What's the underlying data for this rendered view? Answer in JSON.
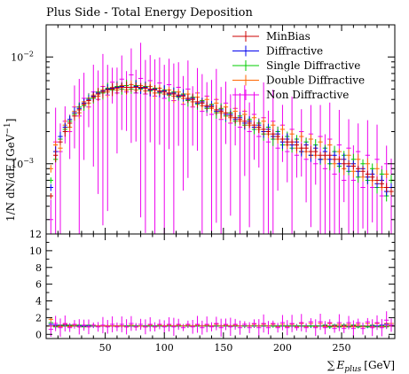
{
  "chart_data": {
    "type": "scatter",
    "title": "Plus Side - Total Energy Deposition",
    "xlabel": "∑E_plus [GeV]",
    "ylabel": "1/N dN/dE [GeV⁻¹]",
    "ylabel_text": "1/N dN/dE [GeV",
    "ylabel_sup": "−1",
    "ylabel_end": "]",
    "xlabel_sum": "∑",
    "xlabel_E": "E",
    "xlabel_sub": "plus",
    "xlabel_unit": "[GeV]",
    "xlim": [
      0,
      295
    ],
    "ylim_top": [
      0.00022,
      0.02
    ],
    "ylim_bottom": [
      -0.5,
      12
    ],
    "x_ticks": [
      50,
      100,
      150,
      200,
      250
    ],
    "y_ticks_top": [
      {
        "base": "10",
        "exp": "−2",
        "value": 0.01
      },
      {
        "base": "10",
        "exp": "−3",
        "value": 0.001
      }
    ],
    "y_ticks_bottom": [
      0,
      2,
      4,
      6,
      8,
      10,
      12
    ],
    "legend_position": "top-right",
    "x": [
      4,
      8,
      12,
      16,
      20,
      24,
      28,
      32,
      36,
      40,
      44,
      48,
      52,
      56,
      60,
      64,
      68,
      72,
      76,
      80,
      84,
      88,
      92,
      96,
      100,
      104,
      108,
      112,
      116,
      120,
      124,
      128,
      132,
      136,
      140,
      144,
      148,
      152,
      156,
      160,
      164,
      168,
      172,
      176,
      180,
      184,
      188,
      192,
      196,
      200,
      204,
      208,
      212,
      216,
      220,
      224,
      228,
      232,
      236,
      240,
      244,
      248,
      252,
      256,
      260,
      264,
      268,
      272,
      276,
      280,
      284,
      288,
      292
    ],
    "series": [
      {
        "name": "MinBias",
        "color": "#cc0000",
        "values": [
          0.0005,
          0.0012,
          0.0016,
          0.002,
          0.0024,
          0.0028,
          0.0032,
          0.0036,
          0.0039,
          0.0042,
          0.0045,
          0.0047,
          0.0049,
          0.005,
          0.0051,
          0.0052,
          0.0052,
          0.0052,
          0.0052,
          0.0052,
          0.0051,
          0.005,
          0.0049,
          0.0048,
          0.0047,
          0.0046,
          0.0045,
          0.0044,
          0.0043,
          0.0041,
          0.004,
          0.0038,
          0.0037,
          0.0035,
          0.0034,
          0.0032,
          0.0031,
          0.003,
          0.0028,
          0.0027,
          0.0026,
          0.0025,
          0.0024,
          0.0023,
          0.0022,
          0.0021,
          0.002,
          0.0019,
          0.0018,
          0.0017,
          0.0016,
          0.0016,
          0.0015,
          0.0014,
          0.0014,
          0.0013,
          0.0013,
          0.0012,
          0.0012,
          0.0012,
          0.0011,
          0.0011,
          0.001,
          0.001,
          0.00095,
          0.0009,
          0.00085,
          0.0008,
          0.00075,
          0.0007,
          0.00065,
          0.0006,
          0.00055
        ]
      },
      {
        "name": "Diffractive",
        "color": "#0000ee",
        "values": [
          0.0006,
          0.0013,
          0.0018,
          0.0022,
          0.0026,
          0.003,
          0.0033,
          0.0037,
          0.004,
          0.0043,
          0.0046,
          0.0048,
          0.005,
          0.0051,
          0.0052,
          0.0053,
          0.0052,
          0.0052,
          0.0053,
          0.0051,
          0.0052,
          0.0049,
          0.005,
          0.0047,
          0.0048,
          0.0045,
          0.0046,
          0.0043,
          0.0044,
          0.004,
          0.0041,
          0.0037,
          0.0038,
          0.0034,
          0.0035,
          0.0031,
          0.0032,
          0.0029,
          0.0029,
          0.0026,
          0.0027,
          0.0024,
          0.0025,
          0.0022,
          0.0023,
          0.002,
          0.0021,
          0.0018,
          0.0019,
          0.0016,
          0.0017,
          0.0015,
          0.0016,
          0.0013,
          0.0015,
          0.0012,
          0.0014,
          0.0011,
          0.0013,
          0.0011,
          0.0012,
          0.001,
          0.0011,
          0.00095,
          0.001,
          0.00085,
          0.0009,
          0.00075,
          0.0008,
          0.00065,
          0.0007,
          0.00055,
          0.0006
        ]
      },
      {
        "name": "Single Diffractive",
        "color": "#00cc00",
        "values": [
          0.0007,
          0.0011,
          0.0017,
          0.0021,
          0.0025,
          0.0029,
          0.0034,
          0.0035,
          0.0041,
          0.0041,
          0.0047,
          0.0046,
          0.0051,
          0.0049,
          0.0053,
          0.005,
          0.0054,
          0.005,
          0.0054,
          0.005,
          0.0053,
          0.0048,
          0.0051,
          0.0046,
          0.0049,
          0.0044,
          0.0047,
          0.0042,
          0.0045,
          0.0039,
          0.0042,
          0.0036,
          0.0039,
          0.0033,
          0.0036,
          0.003,
          0.0033,
          0.0028,
          0.003,
          0.0025,
          0.0028,
          0.0023,
          0.0026,
          0.0021,
          0.0024,
          0.0019,
          0.0022,
          0.0017,
          0.002,
          0.0015,
          0.0018,
          0.0014,
          0.0017,
          0.0013,
          0.0016,
          0.0012,
          0.0015,
          0.0011,
          0.0014,
          0.001,
          0.0013,
          0.00095,
          0.0012,
          0.00085,
          0.0011,
          0.00075,
          0.001,
          0.0007,
          0.0009,
          0.0006,
          0.0008,
          0.0005,
          0.0007
        ]
      },
      {
        "name": "Double Diffractive",
        "color": "#ff6600",
        "values": [
          0.0009,
          0.0015,
          0.0014,
          0.0023,
          0.0022,
          0.0031,
          0.003,
          0.0038,
          0.0037,
          0.0044,
          0.0043,
          0.0049,
          0.0047,
          0.0052,
          0.0049,
          0.0054,
          0.0049,
          0.0055,
          0.0049,
          0.0054,
          0.0048,
          0.0053,
          0.0046,
          0.0051,
          0.0045,
          0.0049,
          0.0043,
          0.0047,
          0.0041,
          0.0045,
          0.0038,
          0.0042,
          0.0035,
          0.004,
          0.0033,
          0.0037,
          0.003,
          0.0034,
          0.0027,
          0.0031,
          0.0025,
          0.0029,
          0.0023,
          0.0027,
          0.0021,
          0.0025,
          0.0019,
          0.0023,
          0.0017,
          0.0021,
          0.0015,
          0.0019,
          0.0014,
          0.0018,
          0.0013,
          0.0017,
          0.0012,
          0.0016,
          0.0011,
          0.0015,
          0.001,
          0.0013,
          0.0009,
          0.0012,
          0.00085,
          0.0011,
          0.00075,
          0.001,
          0.0007,
          0.0009,
          0.0006,
          0.0008,
          0.0007
        ]
      },
      {
        "name": "Non Diffractive",
        "color": "#ee00ee",
        "values": [
          0.0003,
          0.0016,
          0.0013,
          0.0025,
          0.002,
          0.0034,
          0.0028,
          0.0041,
          0.0034,
          0.0047,
          0.004,
          0.0053,
          0.0044,
          0.0058,
          0.0046,
          0.0062,
          0.0047,
          0.0068,
          0.0046,
          0.0063,
          0.0045,
          0.006,
          0.0043,
          0.0057,
          0.0041,
          0.0055,
          0.0039,
          0.0052,
          0.0036,
          0.005,
          0.0034,
          0.0046,
          0.0031,
          0.0043,
          0.0029,
          0.004,
          0.0026,
          0.0037,
          0.0024,
          0.0033,
          0.0022,
          0.0031,
          0.002,
          0.0029,
          0.0018,
          0.0027,
          0.0016,
          0.0025,
          0.0014,
          0.0023,
          0.0013,
          0.0021,
          0.0012,
          0.002,
          0.0011,
          0.0019,
          0.001,
          0.0018,
          0.0009,
          0.0017,
          0.0008,
          0.0015,
          0.0007,
          0.0014,
          0.0007,
          0.0013,
          0.0006,
          0.0012,
          0.0006,
          0.0011,
          0.0005,
          0.001,
          0.0006
        ]
      }
    ],
    "ratio_series": [
      {
        "name": "Diffractive",
        "color": "#0000ee",
        "values": [
          1.2,
          1.1,
          1.1,
          1.1,
          1.1,
          1.1,
          1.0,
          1.0,
          1.0,
          1.0,
          1.0,
          1.0,
          1.0,
          1.0,
          1.0,
          1.0,
          1.0,
          1.0,
          1.0,
          1.0,
          1.0,
          1.0,
          1.0,
          1.0,
          1.0,
          1.0,
          1.0,
          1.0,
          1.0,
          1.0,
          1.0,
          1.0,
          1.0,
          1.0,
          1.0,
          1.0,
          1.0,
          1.0,
          1.0,
          1.0,
          1.0,
          1.0,
          1.0,
          1.0,
          1.0,
          1.0,
          1.0,
          1.0,
          1.0,
          1.0,
          1.0,
          1.0,
          1.0,
          1.0,
          1.0,
          1.0,
          1.0,
          1.0,
          1.1,
          0.9,
          1.1,
          0.9,
          1.1,
          0.9,
          1.1,
          0.9,
          1.0,
          0.9,
          1.0,
          1.0,
          1.1,
          1.2,
          1.3
        ]
      },
      {
        "name": "Single Diffractive",
        "color": "#00cc00",
        "values": [
          1.4,
          0.9,
          1.1,
          1.0,
          1.1,
          1.0,
          1.1,
          0.9,
          1.1,
          1.0,
          1.0,
          1.0,
          1.0,
          1.0,
          1.0,
          1.0,
          1.0,
          1.0,
          1.0,
          1.0,
          1.0,
          1.0,
          1.0,
          1.0,
          1.0,
          1.0,
          1.0,
          1.0,
          1.0,
          1.0,
          1.0,
          1.0,
          1.0,
          1.0,
          1.0,
          1.0,
          1.0,
          1.0,
          1.0,
          1.0,
          1.0,
          1.0,
          1.0,
          1.0,
          1.0,
          1.0,
          1.0,
          1.0,
          1.0,
          1.0,
          1.0,
          1.0,
          1.0,
          1.0,
          1.0,
          1.0,
          1.0,
          1.0,
          1.1,
          0.9,
          1.1,
          0.9,
          1.1,
          0.9,
          1.1,
          0.9,
          1.0,
          0.9,
          1.1,
          0.9,
          1.0,
          0.9,
          1.1
        ]
      },
      {
        "name": "Double Diffractive",
        "color": "#ff6600",
        "values": [
          1.8,
          1.3,
          0.9,
          1.2,
          0.9,
          1.1,
          0.9,
          1.1,
          0.9,
          1.1,
          1.0,
          1.0,
          1.0,
          1.0,
          1.0,
          1.0,
          0.9,
          1.1,
          0.9,
          1.0,
          0.9,
          1.1,
          0.9,
          1.1,
          1.0,
          1.1,
          1.0,
          1.1,
          1.0,
          1.1,
          1.0,
          1.1,
          1.0,
          1.1,
          1.0,
          1.2,
          1.0,
          1.1,
          1.0,
          1.1,
          1.0,
          1.2,
          1.0,
          1.2,
          1.0,
          1.2,
          1.0,
          1.2,
          0.9,
          1.2,
          0.9,
          1.2,
          0.9,
          1.3,
          0.9,
          1.3,
          0.9,
          1.3,
          0.9,
          1.3,
          0.9,
          1.2,
          0.9,
          1.2,
          0.9,
          1.2,
          0.9,
          1.3,
          0.9,
          1.3,
          0.9,
          1.3,
          1.3
        ]
      },
      {
        "name": "Non Diffractive",
        "color": "#ee00ee",
        "values": [
          0.6,
          1.3,
          0.8,
          1.3,
          0.8,
          1.2,
          0.9,
          1.1,
          0.9,
          1.1,
          0.9,
          1.1,
          0.9,
          1.2,
          0.9,
          1.2,
          0.9,
          1.3,
          0.9,
          1.2,
          0.9,
          1.2,
          0.9,
          1.2,
          0.9,
          1.2,
          0.9,
          1.2,
          0.8,
          1.2,
          0.9,
          1.2,
          0.8,
          1.2,
          0.9,
          1.3,
          0.8,
          1.2,
          0.9,
          1.2,
          0.8,
          1.2,
          0.8,
          1.3,
          0.8,
          1.3,
          0.8,
          1.3,
          0.8,
          1.4,
          0.8,
          1.3,
          0.8,
          1.4,
          0.8,
          1.5,
          0.8,
          1.5,
          0.8,
          1.4,
          0.7,
          1.4,
          0.7,
          1.4,
          0.7,
          1.4,
          0.7,
          1.5,
          0.8,
          1.4,
          0.8,
          1.7,
          1.1
        ]
      }
    ]
  }
}
